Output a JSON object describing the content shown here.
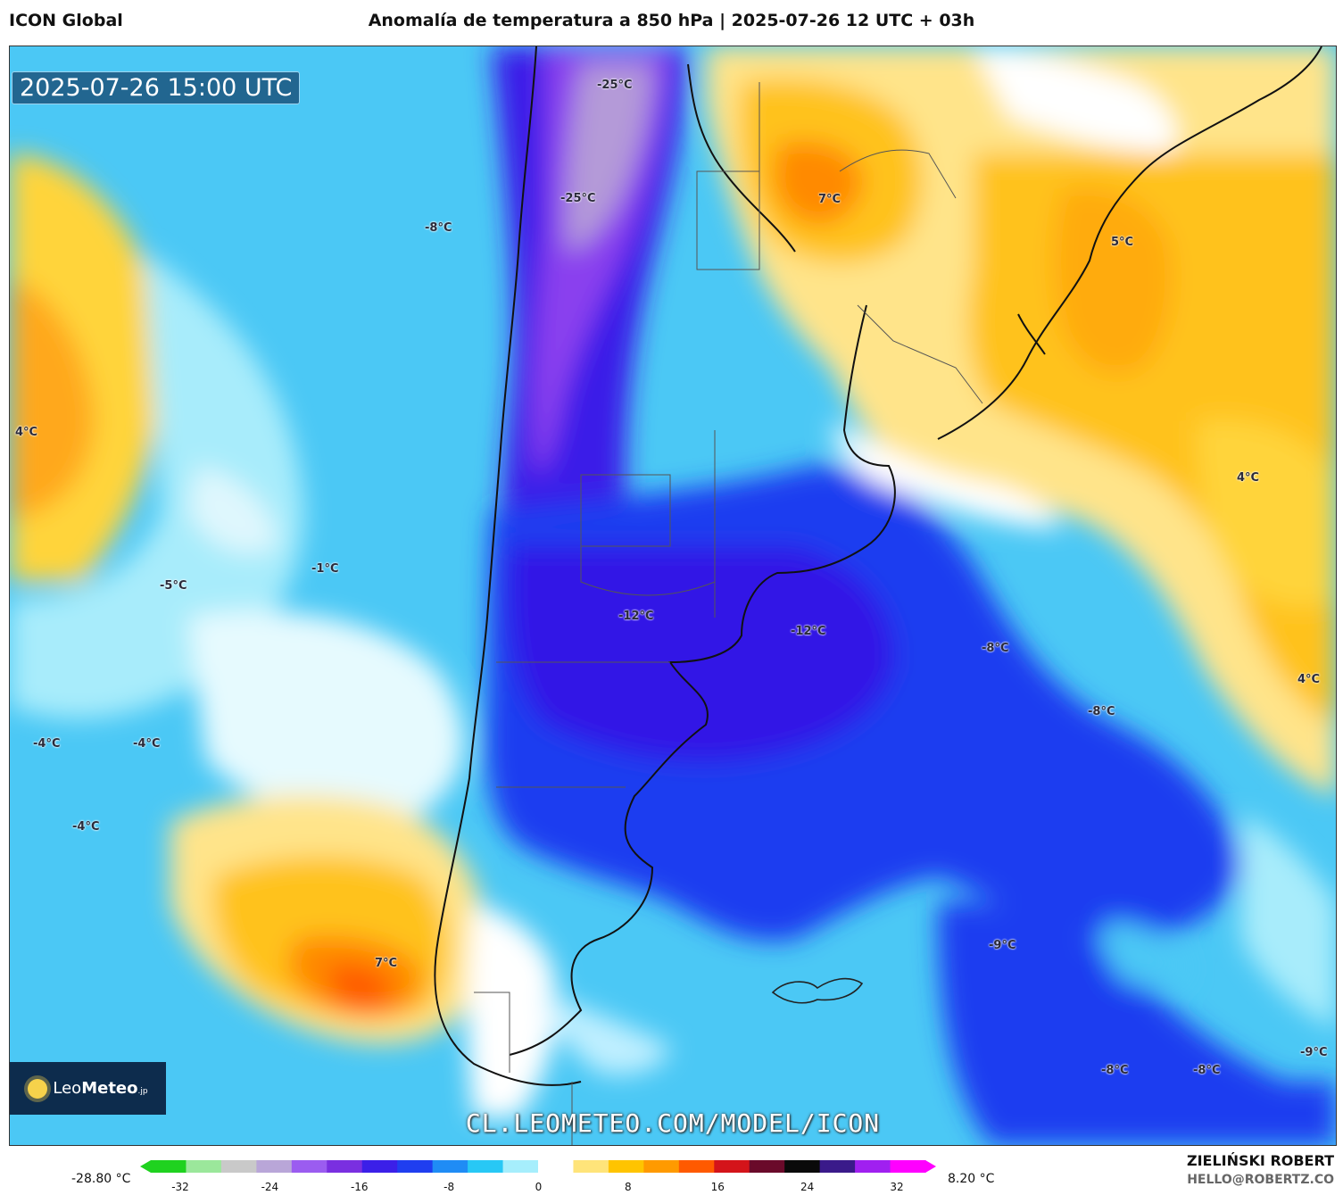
{
  "header": {
    "model": "ICON Global",
    "title": "Anomalía de temperatura a 850 hPa | 2025-07-26 12 UTC + 03h"
  },
  "map": {
    "timestamp": "2025-07-26 15:00 UTC",
    "watermark": "CL.LEOMETEO.COM/MODEL/ICON",
    "labels": [
      {
        "id": "l1",
        "text": "-25°C"
      },
      {
        "id": "l2",
        "text": "-25°C"
      },
      {
        "id": "l3",
        "text": "-8°C"
      },
      {
        "id": "l4",
        "text": "7°C"
      },
      {
        "id": "l5",
        "text": "5°C"
      },
      {
        "id": "l6",
        "text": "4°C"
      },
      {
        "id": "l7",
        "text": "4°C"
      },
      {
        "id": "l8",
        "text": "-1°C"
      },
      {
        "id": "l9",
        "text": "-5°C"
      },
      {
        "id": "l10",
        "text": "-12°C"
      },
      {
        "id": "l11",
        "text": "-12°C"
      },
      {
        "id": "l12",
        "text": "-8°C"
      },
      {
        "id": "l13",
        "text": "4°C"
      },
      {
        "id": "l14",
        "text": "-8°C"
      },
      {
        "id": "l15",
        "text": "-4°C"
      },
      {
        "id": "l16",
        "text": "-4°C"
      },
      {
        "id": "l17",
        "text": "-4°C"
      },
      {
        "id": "l18",
        "text": "7°C"
      },
      {
        "id": "l19",
        "text": "-9°C"
      },
      {
        "id": "l20",
        "text": "-8°C"
      },
      {
        "id": "l21",
        "text": "-8°C"
      },
      {
        "id": "l22",
        "text": "-9°C"
      }
    ]
  },
  "logo": {
    "brand_a": "Leo",
    "brand_b": "Meteo",
    "suffix": ".jp"
  },
  "colorbar": {
    "min_label": "-28.80 °C",
    "max_label": "8.20 °C",
    "ticks": [
      "-32",
      "-24",
      "-16",
      "-8",
      "0",
      "8",
      "16",
      "24",
      "32"
    ],
    "colors": [
      "#1fd21f",
      "#9be79b",
      "#c9c9c9",
      "#b9a6d8",
      "#9b5cf0",
      "#7a2fe0",
      "#3b1fe8",
      "#1f3ef0",
      "#1f8cf5",
      "#28c8f5",
      "#a6eefc",
      "#ffffff",
      "#ffe47a",
      "#ffc400",
      "#ff9a00",
      "#ff5a00",
      "#d4141a",
      "#6a0a2a",
      "#0a0a0a",
      "#3a1a8a",
      "#a020f0",
      "#ff00ff"
    ]
  },
  "footer": {
    "author": "ZIELIŃSKI ROBERT",
    "email": "HELLO@ROBERTZ.CO"
  }
}
